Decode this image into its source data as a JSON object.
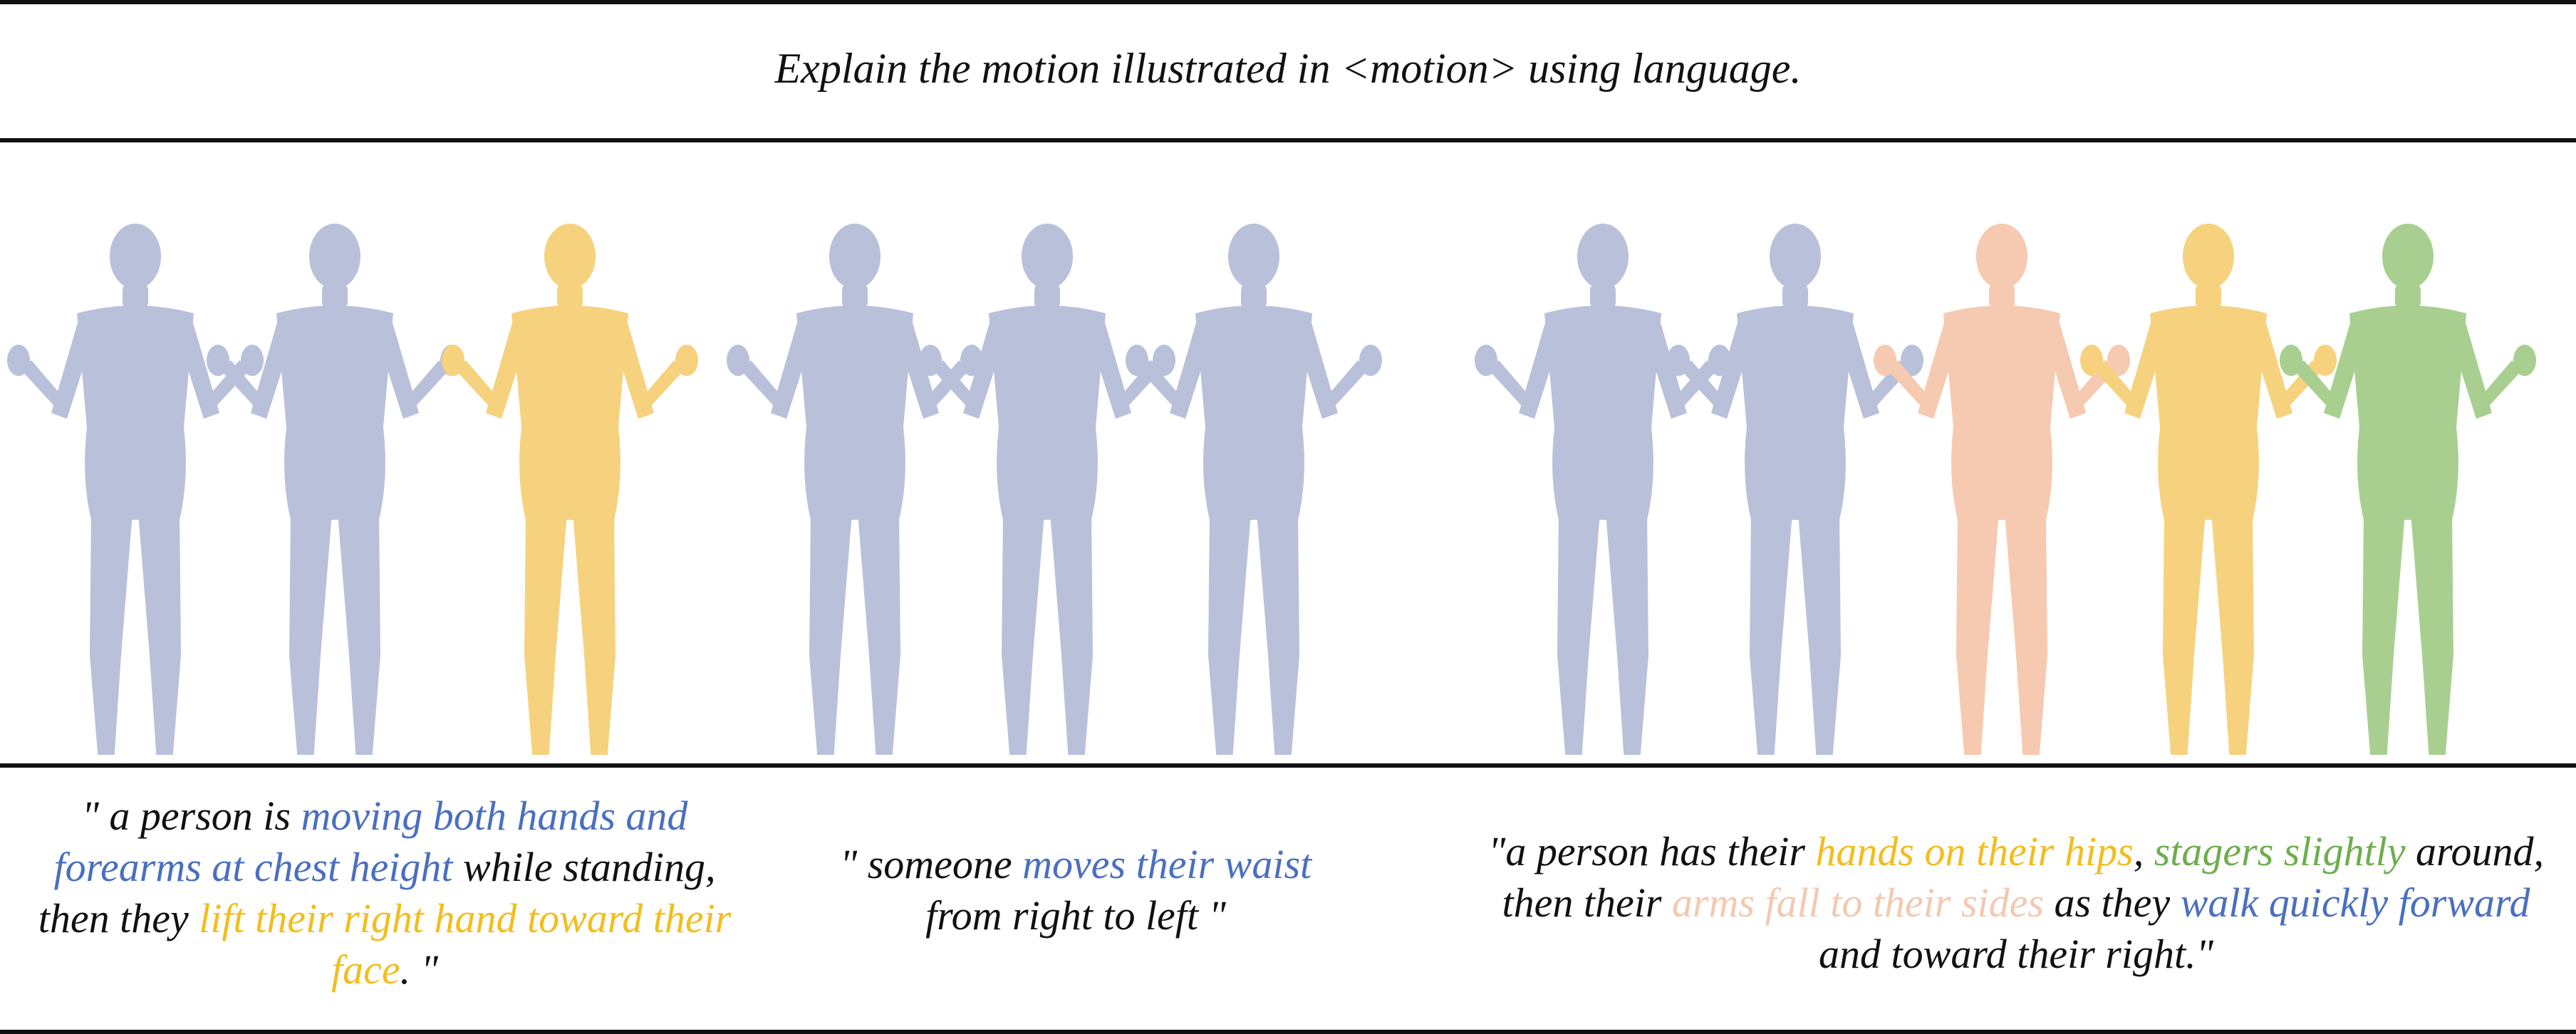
{
  "prompt": "Explain the motion illustrated in <motion> using language.",
  "colors": {
    "blue": "#4a6fc0",
    "gold": "#f2bd1e",
    "peach": "#f4c8b0",
    "green": "#6eae4e",
    "body_blue": "#b9c0da",
    "body_gold": "#f6d27e",
    "body_peach": "#f6c9b1",
    "body_green": "#a8cf8f"
  },
  "groups": [
    {
      "figures": [
        "body_blue",
        "body_blue",
        "body_gold"
      ],
      "caption": [
        {
          "text": "\" a person is ",
          "color": ""
        },
        {
          "text": "moving both hands and forearms at chest height",
          "color": "blue"
        },
        {
          "text": " while standing, then they ",
          "color": ""
        },
        {
          "text": "lift their right hand toward their face",
          "color": "gold"
        },
        {
          "text": ". \"",
          "color": ""
        }
      ]
    },
    {
      "figures": [
        "body_blue",
        "body_blue",
        "body_blue"
      ],
      "caption": [
        {
          "text": "\" someone ",
          "color": ""
        },
        {
          "text": "moves their waist",
          "color": "blue"
        },
        {
          "text": " from right to left \"",
          "color": ""
        }
      ]
    },
    {
      "figures": [
        "body_blue",
        "body_blue",
        "body_peach",
        "body_gold",
        "body_green"
      ],
      "caption": [
        {
          "text": "\"a person has their ",
          "color": ""
        },
        {
          "text": "hands on their hips",
          "color": "gold"
        },
        {
          "text": ", ",
          "color": ""
        },
        {
          "text": "stagers slightly",
          "color": "green"
        },
        {
          "text": " around, then their ",
          "color": ""
        },
        {
          "text": "arms fall to their sides",
          "color": "peach"
        },
        {
          "text": " as they ",
          "color": ""
        },
        {
          "text": "walk quickly forward",
          "color": "blue"
        },
        {
          "text": " and toward their right.\"",
          "color": ""
        }
      ]
    }
  ]
}
